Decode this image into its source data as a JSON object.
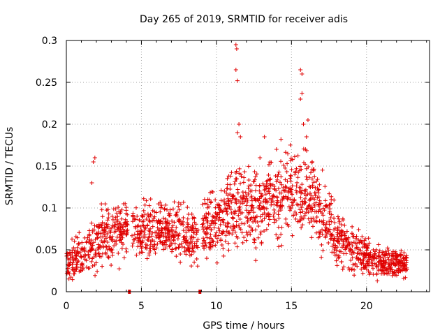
{
  "chart_data": {
    "type": "scatter",
    "title": "Day 265 of 2019, SRMTID for receiver adis",
    "xlabel": "GPS time / hours",
    "ylabel": "SRMTID / TECUs",
    "xlim": [
      0,
      24.2
    ],
    "ylim": [
      0,
      0.3
    ],
    "x_ticks": [
      0,
      5,
      10,
      15,
      20
    ],
    "x_tick_labels": [
      "0",
      "5",
      "10",
      "15",
      "20"
    ],
    "y_ticks": [
      0,
      0.05,
      0.1,
      0.15,
      0.2,
      0.25,
      0.3
    ],
    "y_tick_labels": [
      "0",
      "0.05",
      "0.1",
      "0.15",
      "0.2",
      "0.25",
      "0.3"
    ],
    "grid": true,
    "marker": "+",
    "color": "#e00000",
    "data_gaps_at_zero": [
      4.2,
      8.9
    ],
    "x_range": [
      0,
      22.7
    ],
    "envelope": [
      [
        0,
        0.035,
        0.02
      ],
      [
        1,
        0.045,
        0.02
      ],
      [
        2,
        0.06,
        0.025
      ],
      [
        3,
        0.065,
        0.025
      ],
      [
        4,
        0.068,
        0.025
      ],
      [
        5,
        0.072,
        0.025
      ],
      [
        6,
        0.075,
        0.025
      ],
      [
        7,
        0.072,
        0.025
      ],
      [
        8,
        0.068,
        0.025
      ],
      [
        9,
        0.07,
        0.025
      ],
      [
        10,
        0.085,
        0.03
      ],
      [
        11,
        0.1,
        0.035
      ],
      [
        12,
        0.1,
        0.035
      ],
      [
        13,
        0.1,
        0.035
      ],
      [
        14,
        0.11,
        0.035
      ],
      [
        15,
        0.115,
        0.035
      ],
      [
        16,
        0.12,
        0.035
      ],
      [
        17,
        0.1,
        0.035
      ],
      [
        18,
        0.065,
        0.025
      ],
      [
        19,
        0.05,
        0.02
      ],
      [
        20,
        0.045,
        0.018
      ],
      [
        21,
        0.035,
        0.013
      ],
      [
        22,
        0.035,
        0.012
      ],
      [
        22.7,
        0.035,
        0.012
      ]
    ],
    "spikes": [
      [
        1.8,
        0.155
      ],
      [
        1.9,
        0.16
      ],
      [
        1.7,
        0.13
      ],
      [
        11.3,
        0.295
      ],
      [
        11.35,
        0.29
      ],
      [
        11.3,
        0.265
      ],
      [
        11.4,
        0.252
      ],
      [
        11.5,
        0.2
      ],
      [
        11.4,
        0.19
      ],
      [
        11.6,
        0.185
      ],
      [
        15.6,
        0.265
      ],
      [
        15.7,
        0.26
      ],
      [
        15.7,
        0.237
      ],
      [
        15.6,
        0.23
      ],
      [
        16.1,
        0.205
      ],
      [
        15.8,
        0.2
      ],
      [
        16.0,
        0.185
      ],
      [
        13.2,
        0.185
      ],
      [
        14.0,
        0.17
      ],
      [
        14.3,
        0.182
      ],
      [
        12.9,
        0.16
      ]
    ]
  }
}
